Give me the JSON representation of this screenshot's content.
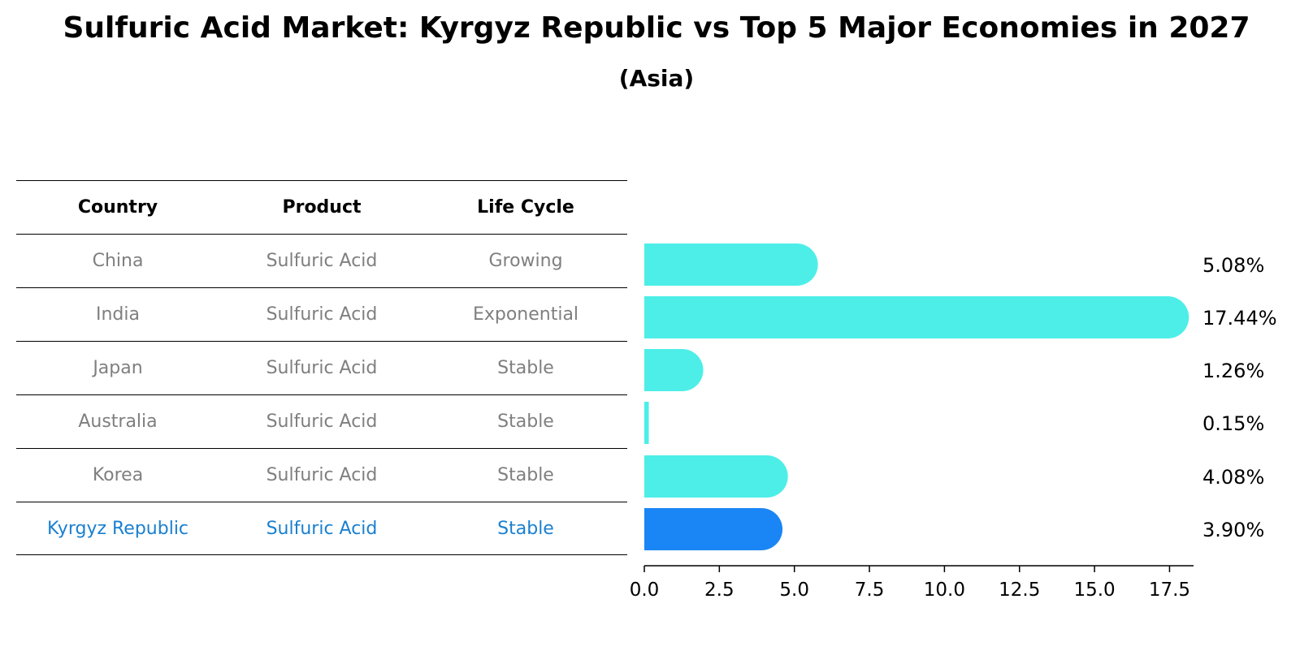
{
  "title": "Sulfuric Acid Market: Kyrgyz Republic vs Top 5 Major Economies in 2027",
  "subtitle": "(Asia)",
  "table": {
    "headers": [
      "Country",
      "Product",
      "Life Cycle"
    ],
    "rows": [
      [
        "China",
        "Sulfuric Acid",
        "Growing"
      ],
      [
        "India",
        "Sulfuric Acid",
        "Exponential"
      ],
      [
        "Japan",
        "Sulfuric Acid",
        "Stable"
      ],
      [
        "Australia",
        "Sulfuric Acid",
        "Stable"
      ],
      [
        "Korea",
        "Sulfuric Acid",
        "Stable"
      ],
      [
        "Kyrgyz Republic",
        "Sulfuric Acid",
        "Stable"
      ]
    ],
    "highlight_row": 5
  },
  "chart_data": {
    "type": "bar",
    "orientation": "horizontal",
    "categories": [
      "China",
      "India",
      "Japan",
      "Australia",
      "Korea",
      "Kyrgyz Republic"
    ],
    "values": [
      5.08,
      17.44,
      1.26,
      0.15,
      4.08,
      3.9
    ],
    "value_labels": [
      "5.08%",
      "17.44%",
      "1.26%",
      "0.15%",
      "4.08%",
      "3.90%"
    ],
    "xlim": [
      0,
      18.3
    ],
    "xticks": [
      0.0,
      2.5,
      5.0,
      7.5,
      10.0,
      12.5,
      15.0,
      17.5
    ],
    "xtick_labels": [
      "0.0",
      "2.5",
      "5.0",
      "7.5",
      "10.0",
      "12.5",
      "15.0",
      "17.5"
    ],
    "colors": {
      "default": "#4deee8",
      "highlight": "#1a86f5"
    },
    "highlight_index": 5
  }
}
